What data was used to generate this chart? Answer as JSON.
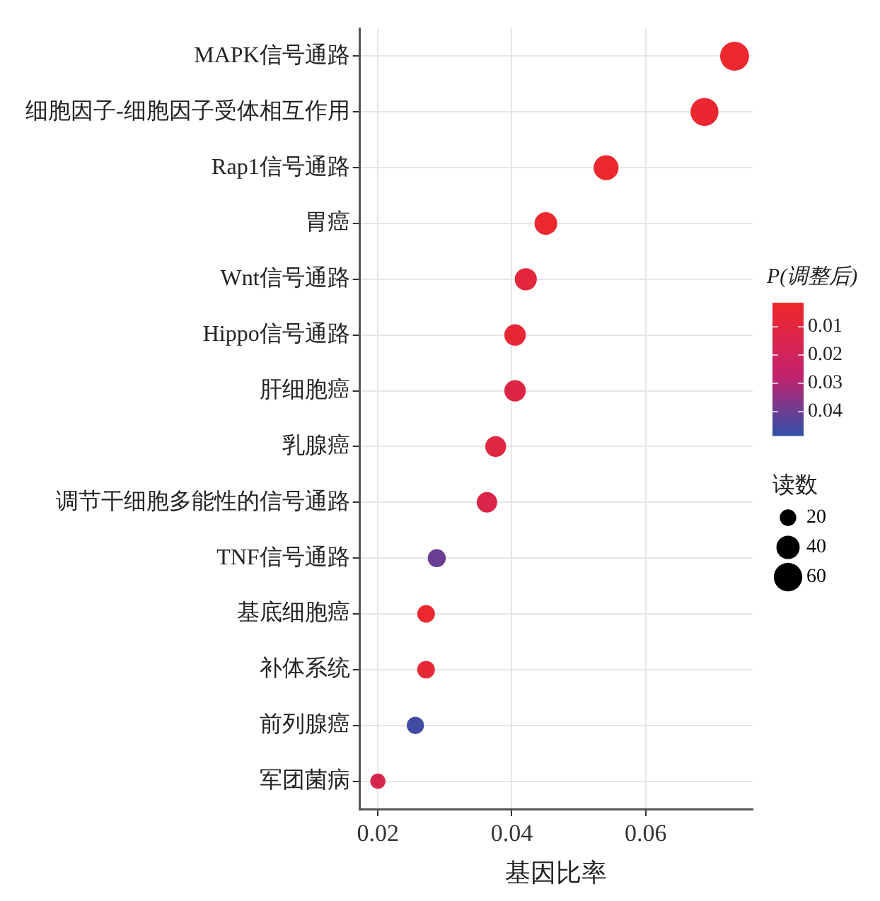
{
  "chart_data": {
    "type": "bubble",
    "orientation": "horizontal",
    "categories": [
      "MAPK信号通路",
      "细胞因子-细胞因子受体相互作用",
      "Rap1信号通路",
      "胃癌",
      "Wnt信号通路",
      "Hippo信号通路",
      "肝细胞癌",
      "乳腺癌",
      "调节干细胞多能性的信号通路",
      "TNF信号通路",
      "基底细胞癌",
      "补体系统",
      "前列腺癌",
      "军团菌病"
    ],
    "values": [
      0.0733,
      0.0688,
      0.0541,
      0.0451,
      0.0421,
      0.0405,
      0.0405,
      0.0376,
      0.0363,
      0.0288,
      0.0272,
      0.0272,
      0.0256,
      0.02
    ],
    "sizes": [
      62,
      58,
      46,
      38,
      36,
      34,
      34,
      32,
      31,
      24,
      23,
      23,
      22,
      17
    ],
    "cvalues": [
      0.003,
      0.004,
      0.003,
      0.003,
      0.008,
      0.006,
      0.012,
      0.01,
      0.013,
      0.04,
      0.003,
      0.007,
      0.046,
      0.015
    ],
    "xlim": [
      0.0173,
      0.076
    ],
    "xticks": [
      {
        "value": 0.02,
        "label": "0.02"
      },
      {
        "value": 0.04,
        "label": "0.04"
      },
      {
        "value": 0.06,
        "label": "0.06"
      }
    ],
    "xlabel": "基因比率",
    "clabel": "P(调整后)",
    "clim": [
      0.0015,
      0.0485
    ],
    "cticks": [
      0.01,
      0.02,
      0.03,
      0.04
    ],
    "legend_title": "读数",
    "size_legend": [
      20,
      40,
      60
    ],
    "grid": true
  }
}
